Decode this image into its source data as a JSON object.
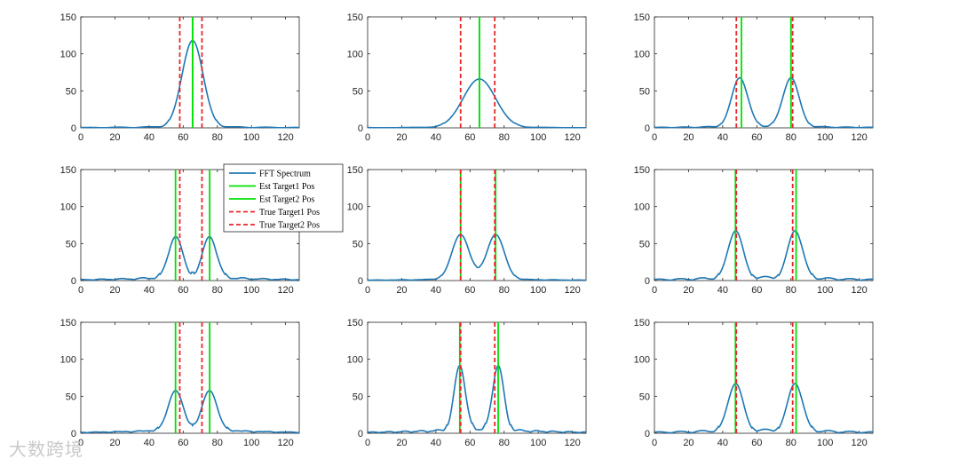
{
  "colors": {
    "spectrum": "#1f77b4",
    "est": "#00e000",
    "true": "#e8262b",
    "axis": "#262626",
    "watermark": "#c9c9c9"
  },
  "legend": [
    {
      "label": "FFT Spectrum",
      "kind": "spectrum"
    },
    {
      "label": "Est Target1 Pos",
      "kind": "est"
    },
    {
      "label": "Est Target2 Pos",
      "kind": "est"
    },
    {
      "label": "True Target1 Pos",
      "kind": "true"
    },
    {
      "label": "True Target2 Pos",
      "kind": "true"
    }
  ],
  "watermark": {
    "text": "大数跨境"
  },
  "chart_data": [
    {
      "type": "line",
      "xlim": [
        0,
        128
      ],
      "ylim": [
        0,
        150
      ],
      "xticks": [
        0,
        20,
        40,
        60,
        80,
        100,
        120
      ],
      "yticks": [
        0,
        50,
        100,
        150
      ],
      "peaks": [
        {
          "center": 65.5,
          "amp": 118,
          "width": 6.2
        }
      ],
      "sidelobe_floor": 2,
      "est_positions": [
        65.5,
        65.5
      ],
      "true_positions": [
        58,
        71
      ]
    },
    {
      "type": "line",
      "xlim": [
        0,
        128
      ],
      "ylim": [
        0,
        150
      ],
      "xticks": [
        0,
        20,
        40,
        60,
        80,
        100,
        120
      ],
      "yticks": [
        0,
        50,
        100,
        150
      ],
      "peaks": [
        {
          "center": 65.5,
          "amp": 66,
          "width": 9.5
        }
      ],
      "sidelobe_floor": 1,
      "est_positions": [
        65.5,
        65.5
      ],
      "true_positions": [
        54.5,
        74.5
      ]
    },
    {
      "type": "line",
      "xlim": [
        0,
        128
      ],
      "ylim": [
        0,
        150
      ],
      "xticks": [
        0,
        20,
        40,
        60,
        80,
        100,
        120
      ],
      "yticks": [
        0,
        50,
        100,
        150
      ],
      "peaks": [
        {
          "center": 50,
          "amp": 67,
          "width": 4.8
        },
        {
          "center": 80,
          "amp": 67,
          "width": 4.8
        }
      ],
      "sidelobe_floor": 3,
      "est_positions": [
        51,
        80
      ],
      "true_positions": [
        48,
        81
      ]
    },
    {
      "type": "line",
      "xlim": [
        0,
        128
      ],
      "ylim": [
        0,
        150
      ],
      "xticks": [
        0,
        20,
        40,
        60,
        80,
        100,
        120
      ],
      "yticks": [
        0,
        50,
        100,
        150
      ],
      "peaks": [
        {
          "center": 55.5,
          "amp": 57,
          "width": 4.3
        },
        {
          "center": 75.5,
          "amp": 57,
          "width": 4.3
        }
      ],
      "sidelobe_floor": 7,
      "est_positions": [
        55.5,
        75.5
      ],
      "true_positions": [
        58,
        71
      ]
    },
    {
      "type": "line",
      "xlim": [
        0,
        128
      ],
      "ylim": [
        0,
        150
      ],
      "xticks": [
        0,
        20,
        40,
        60,
        80,
        100,
        120
      ],
      "yticks": [
        0,
        50,
        100,
        150
      ],
      "peaks": [
        {
          "center": 54.5,
          "amp": 61,
          "width": 5.2
        },
        {
          "center": 75,
          "amp": 61,
          "width": 5.2
        }
      ],
      "sidelobe_floor": 3,
      "est_positions": [
        54.5,
        75
      ],
      "true_positions": [
        54.5,
        74.5
      ]
    },
    {
      "type": "line",
      "xlim": [
        0,
        128
      ],
      "ylim": [
        0,
        150
      ],
      "xticks": [
        0,
        20,
        40,
        60,
        80,
        100,
        120
      ],
      "yticks": [
        0,
        50,
        100,
        150
      ],
      "peaks": [
        {
          "center": 47.5,
          "amp": 66,
          "width": 4.5
        },
        {
          "center": 82.5,
          "amp": 66,
          "width": 4.5
        }
      ],
      "sidelobe_floor": 7,
      "est_positions": [
        47.5,
        83
      ],
      "true_positions": [
        48,
        81
      ]
    },
    {
      "type": "line",
      "xlim": [
        0,
        128
      ],
      "ylim": [
        0,
        150
      ],
      "xticks": [
        0,
        20,
        40,
        60,
        80,
        100,
        120
      ],
      "yticks": [
        0,
        50,
        100,
        150
      ],
      "peaks": [
        {
          "center": 55.5,
          "amp": 55,
          "width": 4.6
        },
        {
          "center": 75.5,
          "amp": 55,
          "width": 4.6
        }
      ],
      "sidelobe_floor": 7,
      "est_positions": [
        55.5,
        75.5
      ],
      "true_positions": [
        58,
        71
      ]
    },
    {
      "type": "line",
      "xlim": [
        0,
        128
      ],
      "ylim": [
        0,
        150
      ],
      "xticks": [
        0,
        20,
        40,
        60,
        80,
        100,
        120
      ],
      "yticks": [
        0,
        50,
        100,
        150
      ],
      "peaks": [
        {
          "center": 54,
          "amp": 89,
          "width": 3.4
        },
        {
          "center": 76.5,
          "amp": 89,
          "width": 3.4
        }
      ],
      "sidelobe_floor": 8,
      "est_positions": [
        54,
        76.5
      ],
      "true_positions": [
        54.5,
        74.5
      ]
    },
    {
      "type": "line",
      "xlim": [
        0,
        128
      ],
      "ylim": [
        0,
        150
      ],
      "xticks": [
        0,
        20,
        40,
        60,
        80,
        100,
        120
      ],
      "yticks": [
        0,
        50,
        100,
        150
      ],
      "peaks": [
        {
          "center": 47.5,
          "amp": 66,
          "width": 4.5
        },
        {
          "center": 82.5,
          "amp": 66,
          "width": 4.5
        }
      ],
      "sidelobe_floor": 7,
      "est_positions": [
        47.5,
        83
      ],
      "true_positions": [
        48,
        81
      ]
    }
  ]
}
